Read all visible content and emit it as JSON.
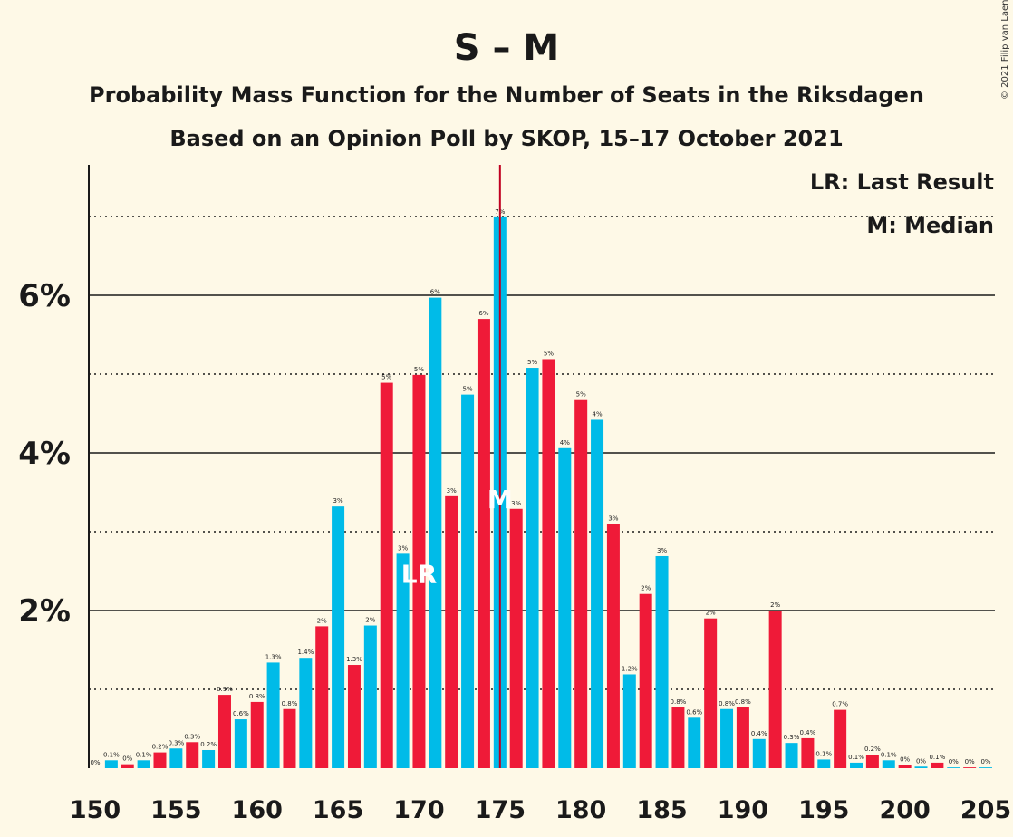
{
  "title": "S – M",
  "subtitle1": "Probability Mass Function for the Number of Seats in the Riksdagen",
  "subtitle2": "Based on an Opinion Poll by SKOP, 15–17 October 2021",
  "copyright": "© 2021 Filip van Laenen",
  "legend": {
    "last_result": "LR: Last Result",
    "median": "M: Median"
  },
  "colors": {
    "background": "#FEF9E7",
    "blue": "#00BBE8",
    "red": "#EF1A38",
    "median_line": "#C00020"
  },
  "chart_data": {
    "type": "bar",
    "xlim": [
      150,
      205
    ],
    "ylim": [
      0,
      7.6
    ],
    "x_ticks": [
      150,
      155,
      160,
      165,
      170,
      175,
      180,
      185,
      190,
      195,
      200,
      205
    ],
    "y_ticks": [
      {
        "value": 2,
        "label": "2%"
      },
      {
        "value": 4,
        "label": "4%"
      },
      {
        "value": 6,
        "label": "6%"
      }
    ],
    "minor_gridlines": [
      1,
      3,
      5,
      7
    ],
    "last_result": {
      "seat": 170,
      "label": "LR"
    },
    "median": {
      "seat": 175,
      "label": "M"
    },
    "bars": [
      {
        "seat": 151,
        "value": 0.1,
        "label": "0.1%",
        "color": "blue"
      },
      {
        "seat": 152,
        "value": 0.05,
        "label": "0%",
        "color": "red"
      },
      {
        "seat": 153,
        "value": 0.1,
        "label": "0.1%",
        "color": "blue"
      },
      {
        "seat": 154,
        "value": 0.2,
        "label": "0.2%",
        "color": "red"
      },
      {
        "seat": 155,
        "value": 0.25,
        "label": "0.3%",
        "color": "blue"
      },
      {
        "seat": 156,
        "value": 0.33,
        "label": "0.3%",
        "color": "red"
      },
      {
        "seat": 157,
        "value": 0.23,
        "label": "0.2%",
        "color": "blue"
      },
      {
        "seat": 158,
        "value": 0.93,
        "label": "0.9%",
        "color": "red"
      },
      {
        "seat": 159,
        "value": 0.62,
        "label": "0.6%",
        "color": "blue"
      },
      {
        "seat": 160,
        "value": 0.84,
        "label": "0.8%",
        "color": "red"
      },
      {
        "seat": 161,
        "value": 1.34,
        "label": "1.3%",
        "color": "blue"
      },
      {
        "seat": 162,
        "value": 0.75,
        "label": "0.8%",
        "color": "red"
      },
      {
        "seat": 163,
        "value": 1.4,
        "label": "1.4%",
        "color": "blue"
      },
      {
        "seat": 164,
        "value": 1.8,
        "label": "2%",
        "color": "red"
      },
      {
        "seat": 165,
        "value": 3.32,
        "label": "3%",
        "color": "blue"
      },
      {
        "seat": 166,
        "value": 1.31,
        "label": "1.3%",
        "color": "red"
      },
      {
        "seat": 167,
        "value": 1.81,
        "label": "2%",
        "color": "blue"
      },
      {
        "seat": 168,
        "value": 4.89,
        "label": "5%",
        "color": "red"
      },
      {
        "seat": 169,
        "value": 2.72,
        "label": "3%",
        "color": "blue"
      },
      {
        "seat": 170,
        "value": 4.99,
        "label": "5%",
        "color": "red"
      },
      {
        "seat": 171,
        "value": 5.97,
        "label": "6%",
        "color": "blue"
      },
      {
        "seat": 172,
        "value": 3.45,
        "label": "3%",
        "color": "red"
      },
      {
        "seat": 173,
        "value": 4.74,
        "label": "5%",
        "color": "blue"
      },
      {
        "seat": 174,
        "value": 5.7,
        "label": "6%",
        "color": "red"
      },
      {
        "seat": 175,
        "value": 6.99,
        "label": "7%",
        "color": "blue"
      },
      {
        "seat": 176,
        "value": 3.29,
        "label": "3%",
        "color": "red"
      },
      {
        "seat": 177,
        "value": 5.08,
        "label": "5%",
        "color": "blue"
      },
      {
        "seat": 178,
        "value": 5.19,
        "label": "5%",
        "color": "red"
      },
      {
        "seat": 179,
        "value": 4.06,
        "label": "4%",
        "color": "blue"
      },
      {
        "seat": 180,
        "value": 4.67,
        "label": "5%",
        "color": "red"
      },
      {
        "seat": 181,
        "value": 4.42,
        "label": "4%",
        "color": "blue"
      },
      {
        "seat": 182,
        "value": 3.1,
        "label": "3%",
        "color": "red"
      },
      {
        "seat": 183,
        "value": 1.19,
        "label": "1.2%",
        "color": "blue"
      },
      {
        "seat": 184,
        "value": 2.21,
        "label": "2%",
        "color": "red"
      },
      {
        "seat": 185,
        "value": 2.69,
        "label": "3%",
        "color": "blue"
      },
      {
        "seat": 186,
        "value": 0.77,
        "label": "0.8%",
        "color": "red"
      },
      {
        "seat": 187,
        "value": 0.64,
        "label": "0.6%",
        "color": "blue"
      },
      {
        "seat": 188,
        "value": 1.9,
        "label": "2%",
        "color": "red"
      },
      {
        "seat": 189,
        "value": 0.75,
        "label": "0.8%",
        "color": "blue"
      },
      {
        "seat": 190,
        "value": 0.77,
        "label": "0.8%",
        "color": "red"
      },
      {
        "seat": 191,
        "value": 0.37,
        "label": "0.4%",
        "color": "blue"
      },
      {
        "seat": 192,
        "value": 2.0,
        "label": "2%",
        "color": "red"
      },
      {
        "seat": 193,
        "value": 0.32,
        "label": "0.3%",
        "color": "blue"
      },
      {
        "seat": 194,
        "value": 0.38,
        "label": "0.4%",
        "color": "red"
      },
      {
        "seat": 195,
        "value": 0.11,
        "label": "0.1%",
        "color": "blue"
      },
      {
        "seat": 196,
        "value": 0.74,
        "label": "0.7%",
        "color": "red"
      },
      {
        "seat": 197,
        "value": 0.07,
        "label": "0.1%",
        "color": "blue"
      },
      {
        "seat": 198,
        "value": 0.17,
        "label": "0.2%",
        "color": "red"
      },
      {
        "seat": 199,
        "value": 0.1,
        "label": "0.1%",
        "color": "blue"
      },
      {
        "seat": 200,
        "value": 0.04,
        "label": "0%",
        "color": "red"
      },
      {
        "seat": 201,
        "value": 0.02,
        "label": "0%",
        "color": "blue"
      },
      {
        "seat": 202,
        "value": 0.07,
        "label": "0.1%",
        "color": "red"
      },
      {
        "seat": 203,
        "value": 0.01,
        "label": "0%",
        "color": "blue"
      },
      {
        "seat": 204,
        "value": 0.01,
        "label": "0%",
        "color": "red"
      },
      {
        "seat": 205,
        "value": 0.01,
        "label": "0%",
        "color": "blue"
      },
      {
        "seat": 150,
        "value": 0.0,
        "label": "0%",
        "color": "blue"
      }
    ]
  }
}
